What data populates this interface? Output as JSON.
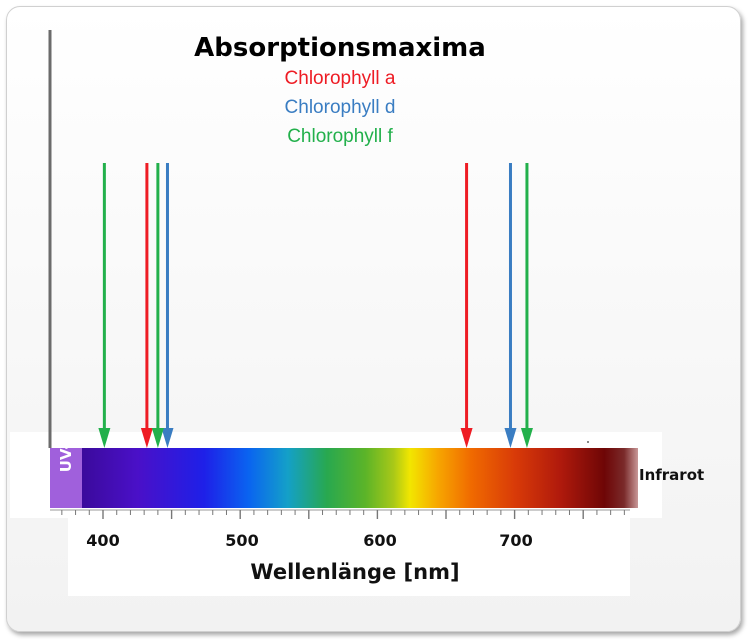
{
  "title": "Absorptionsmaxima",
  "legend": [
    {
      "label": "Chlorophyll a",
      "color": "#ee1c24"
    },
    {
      "label": "Chlorophyll d",
      "color": "#3a7dc2"
    },
    {
      "label": "Chlorophyll  f",
      "color": "#22b04b"
    }
  ],
  "axis": {
    "xlabel": "Wellenlänge [nm]",
    "ticks": [
      "400",
      "500",
      "600",
      "700"
    ]
  },
  "spectrum": {
    "uv_label": "UV-A",
    "ir_label": "Infrarot"
  },
  "chart_data": {
    "type": "scatter",
    "xlabel": "Wellenlänge [nm]",
    "xlim": [
      380,
      780
    ],
    "series": [
      {
        "name": "Chlorophyll a",
        "color": "#ee1c24",
        "x": [
          432,
          665
        ]
      },
      {
        "name": "Chlorophyll d",
        "color": "#3a7dc2",
        "x": [
          447,
          697
        ]
      },
      {
        "name": "Chlorophyll  f",
        "color": "#22b04b",
        "x": [
          401,
          440,
          709
        ]
      }
    ]
  }
}
